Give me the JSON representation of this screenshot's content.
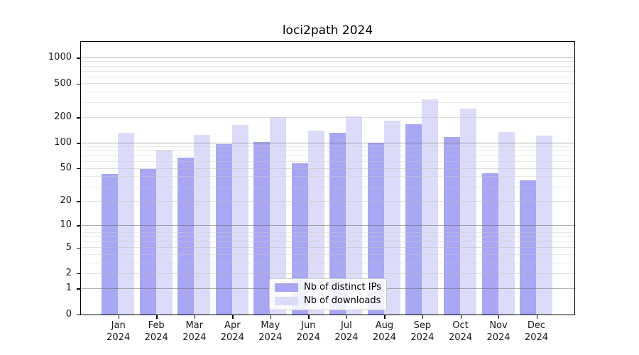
{
  "title": "loci2path 2024",
  "chart_data": {
    "type": "bar",
    "title": "loci2path 2024",
    "categories": [
      "Jan",
      "Feb",
      "Mar",
      "Apr",
      "May",
      "Jun",
      "Jul",
      "Aug",
      "Sep",
      "Oct",
      "Nov",
      "Dec"
    ],
    "category_year": "2024",
    "series": [
      {
        "name": "Nb of distinct IPs",
        "color": "#a7a7f3",
        "values": [
          43,
          50,
          68,
          97,
          103,
          58,
          133,
          102,
          167,
          119,
          44,
          36
        ]
      },
      {
        "name": "Nb of downloads",
        "color": "#dcdcfa",
        "values": [
          134,
          84,
          125,
          166,
          204,
          142,
          209,
          184,
          330,
          258,
          135,
          123
        ]
      }
    ],
    "yscale": "log1p",
    "yticks": [
      0,
      1,
      2,
      5,
      10,
      20,
      50,
      100,
      200,
      500,
      1000
    ],
    "ylim": [
      0,
      1520
    ],
    "grid": true,
    "legend_position": "lower center",
    "colors": {
      "frame": "#000000",
      "major_gridline": "#b3b3b3",
      "minor_gridline": "#e9e9e9",
      "text": "#000000",
      "background": "#ffffff"
    }
  }
}
